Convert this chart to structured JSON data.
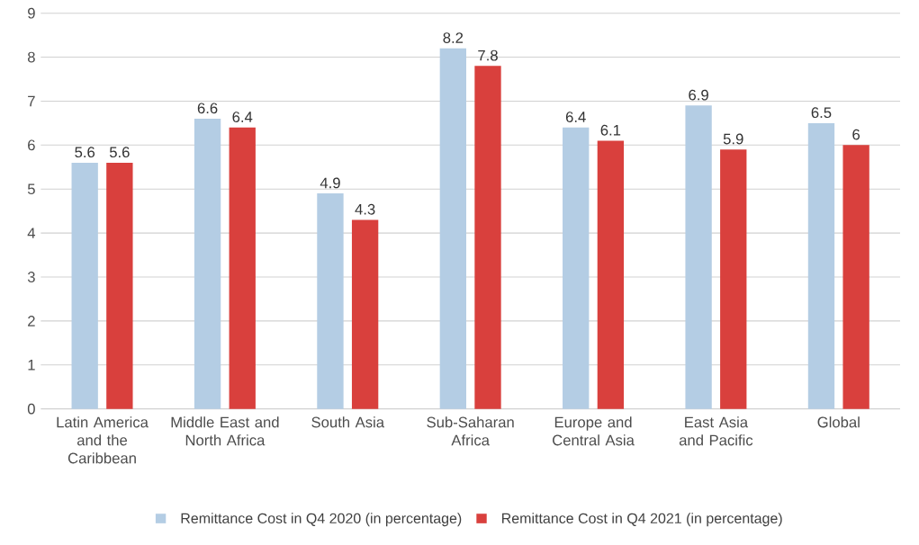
{
  "chart_data": {
    "type": "bar",
    "categories": [
      "Latin America and the Caribbean",
      "Middle East and North Africa",
      "South Asia",
      "Sub-Saharan Africa",
      "Europe and Central Asia",
      "East Asia and Pacific",
      "Global"
    ],
    "series": [
      {
        "name": "Remittance Cost in Q4 2020 (in percentage)",
        "color": "#b4cde4",
        "values": [
          5.6,
          6.6,
          4.9,
          8.2,
          6.4,
          6.9,
          6.5
        ]
      },
      {
        "name": "Remittance Cost in Q4 2021 (in percentage)",
        "color": "#d9403d",
        "values": [
          5.6,
          6.4,
          4.3,
          7.8,
          6.1,
          5.9,
          6
        ]
      }
    ],
    "ylim": [
      0,
      9
    ],
    "yticks": [
      0,
      1,
      2,
      3,
      4,
      5,
      6,
      7,
      8,
      9
    ],
    "grid": "y",
    "legend": "bottom",
    "data_labels": true
  }
}
